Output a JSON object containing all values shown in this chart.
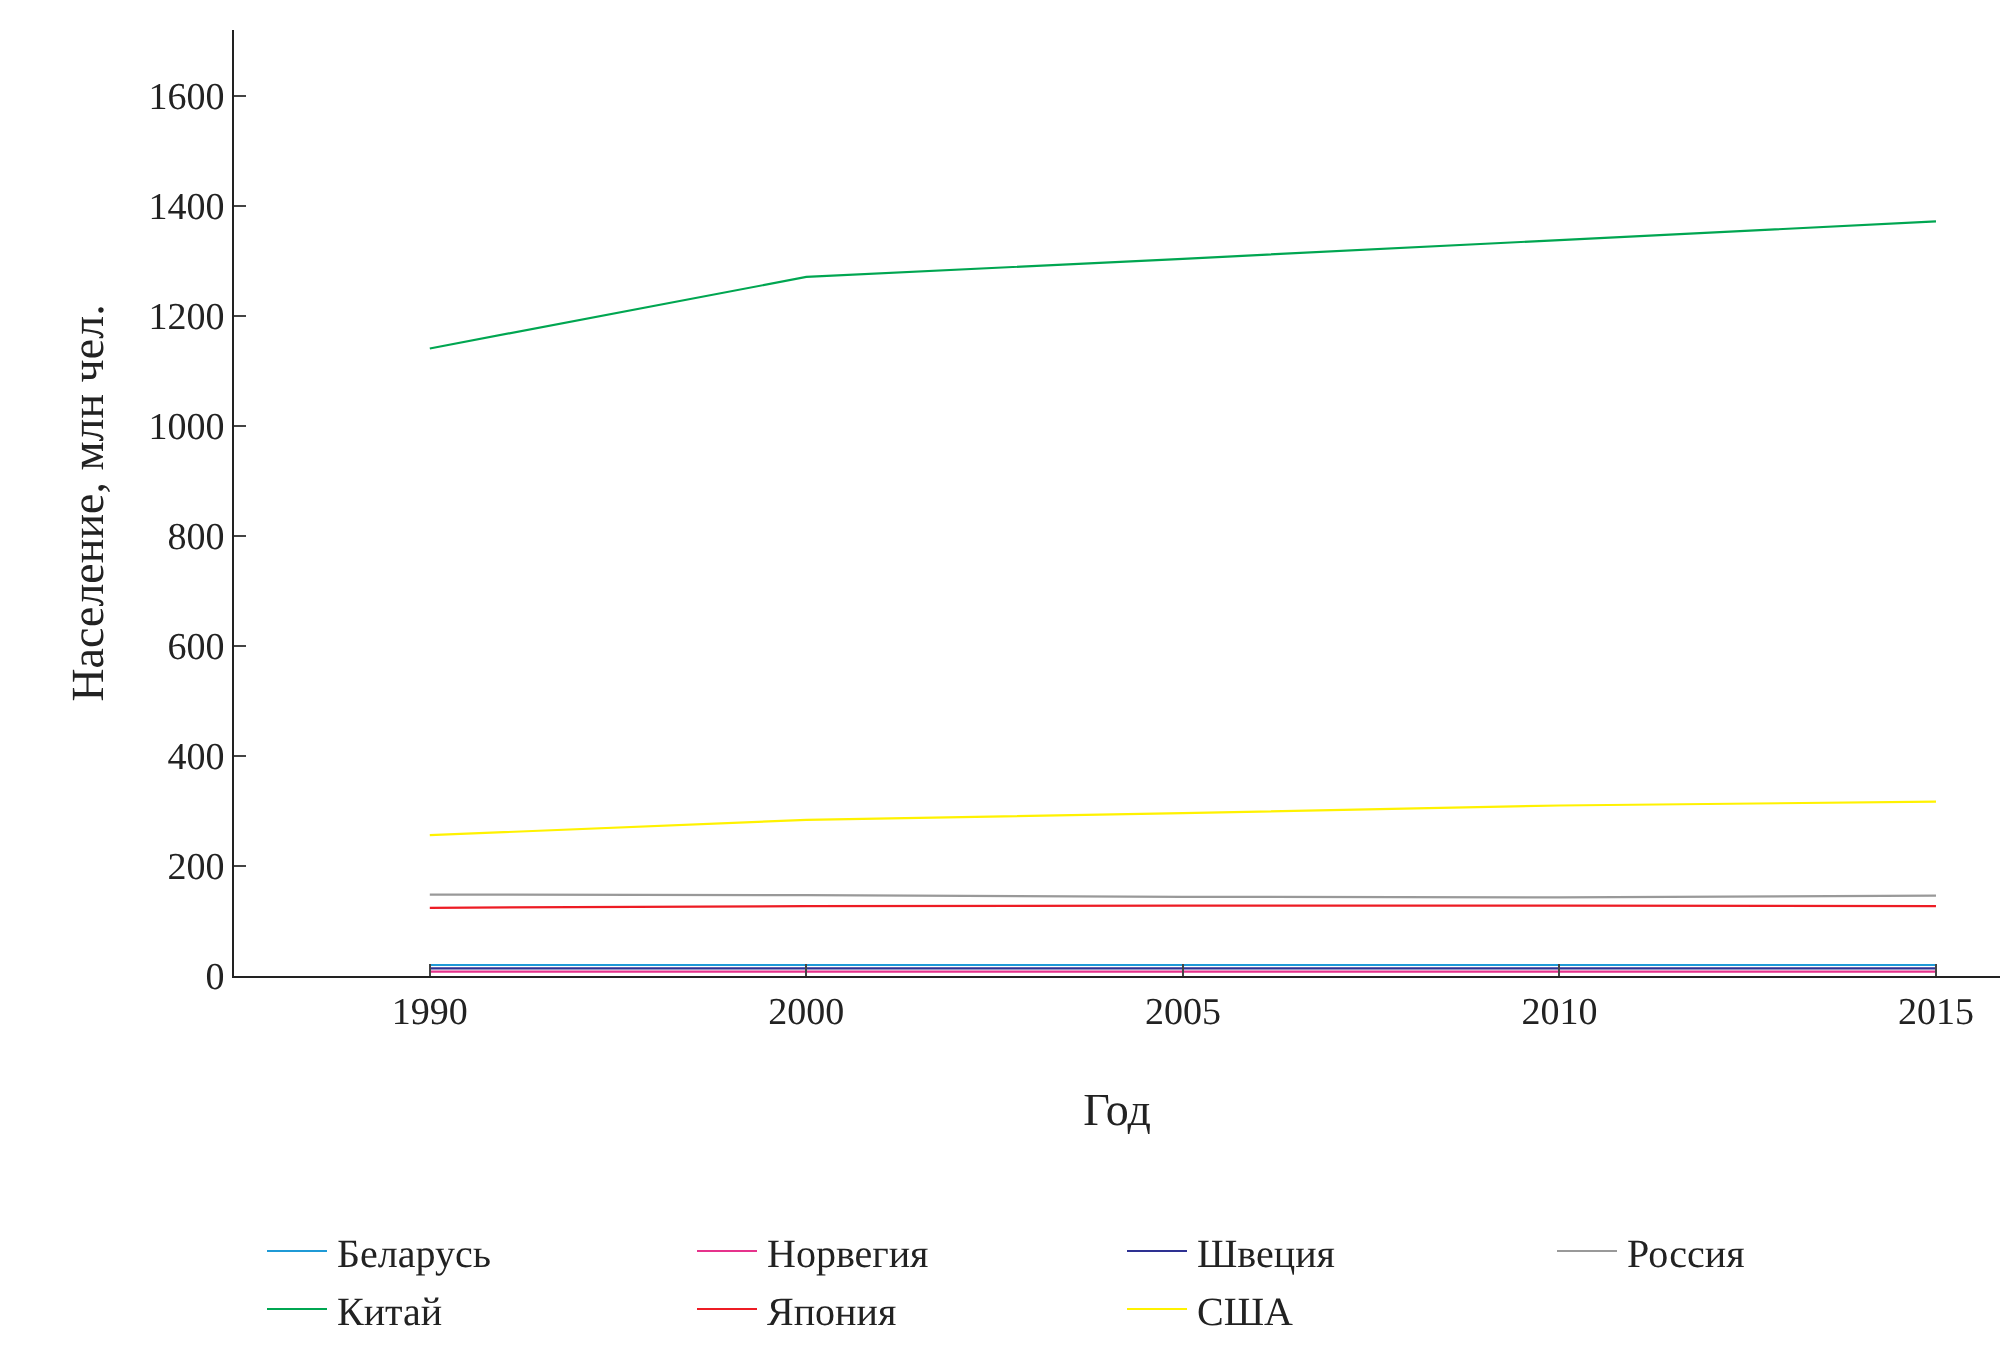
{
  "chart_data": {
    "type": "line",
    "xlabel": "Год",
    "ylabel": "Население, млн чел.",
    "categories": [
      "1990",
      "2000",
      "2005",
      "2010",
      "2015"
    ],
    "ylim": [
      0,
      1720
    ],
    "yticks": [
      0,
      200,
      400,
      600,
      800,
      1000,
      1200,
      1400,
      1600
    ],
    "legend": "bottom",
    "marker": "none",
    "line_style": "solid",
    "series": [
      {
        "name": "Беларусь",
        "color": "#1f9ad6",
        "values": [
          20,
          20,
          20,
          20,
          20
        ]
      },
      {
        "name": "Норвегия",
        "color": "#e6338c",
        "values": [
          8,
          8,
          8,
          8,
          8
        ]
      },
      {
        "name": "Швеция",
        "color": "#2e3192",
        "values": [
          14,
          14,
          14,
          14,
          14
        ]
      },
      {
        "name": "Россия",
        "color": "#999999",
        "values": [
          148,
          147,
          144,
          143,
          146
        ]
      },
      {
        "name": "Китай",
        "color": "#00a651",
        "values": [
          1141,
          1271,
          1304,
          1338,
          1372
        ]
      },
      {
        "name": "Япония",
        "color": "#ed1c24",
        "values": [
          124,
          127,
          128,
          128,
          127
        ]
      },
      {
        "name": "США",
        "color": "#fff200",
        "values": [
          256,
          284,
          296,
          310,
          317
        ]
      }
    ]
  }
}
